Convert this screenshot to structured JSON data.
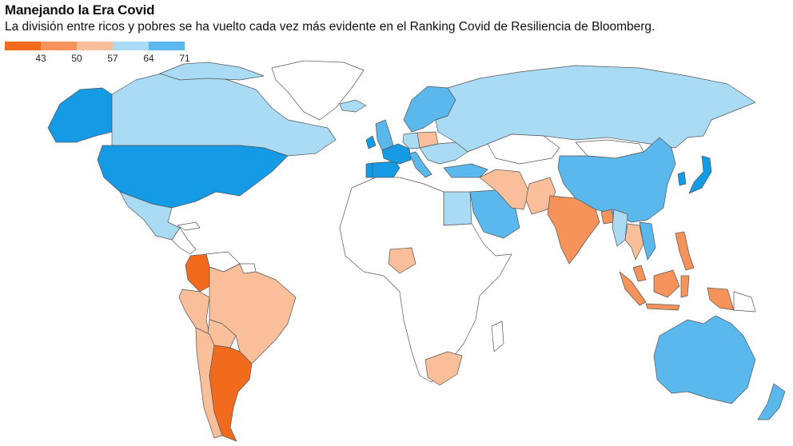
{
  "header": {
    "title": "Manejando la Era Covid",
    "subtitle": "La división entre ricos y pobres se ha vuelto cada vez más evidente en el Ranking Covid de Resiliencia de Bloomberg."
  },
  "legend": {
    "ticks": [
      "43",
      "50",
      "57",
      "64",
      "71"
    ],
    "colors": [
      "#f26b1d",
      "#f5935a",
      "#f8bf9a",
      "#a9dbf5",
      "#5ab8ec",
      "#159be6"
    ]
  },
  "map": {
    "ocean_color": "#ffffff",
    "no_data_color": "#ffffff",
    "regions": [
      {
        "name": "Canada",
        "level": 3
      },
      {
        "name": "Alaska",
        "level": 5
      },
      {
        "name": "United States",
        "level": 5
      },
      {
        "name": "Greenland",
        "level": 6
      },
      {
        "name": "Mexico",
        "level": 3
      },
      {
        "name": "Central America",
        "level": 6
      },
      {
        "name": "Colombia",
        "level": 0
      },
      {
        "name": "Venezuela",
        "level": 6
      },
      {
        "name": "Brazil",
        "level": 2
      },
      {
        "name": "Peru",
        "level": 2
      },
      {
        "name": "Bolivia",
        "level": 2
      },
      {
        "name": "Chile",
        "level": 2
      },
      {
        "name": "Argentina",
        "level": 0
      },
      {
        "name": "Iceland",
        "level": 3
      },
      {
        "name": "United Kingdom",
        "level": 4
      },
      {
        "name": "Ireland",
        "level": 5
      },
      {
        "name": "Scandinavia",
        "level": 4
      },
      {
        "name": "France",
        "level": 5
      },
      {
        "name": "Spain",
        "level": 5
      },
      {
        "name": "Portugal",
        "level": 5
      },
      {
        "name": "Germany",
        "level": 3
      },
      {
        "name": "Poland",
        "level": 2
      },
      {
        "name": "Italy",
        "level": 4
      },
      {
        "name": "Eastern Europe",
        "level": 3
      },
      {
        "name": "Turkey",
        "level": 4
      },
      {
        "name": "Russia",
        "level": 3
      },
      {
        "name": "Kazakhstan",
        "level": 6
      },
      {
        "name": "China",
        "level": 4
      },
      {
        "name": "Mongolia",
        "level": 6
      },
      {
        "name": "Japan",
        "level": 5
      },
      {
        "name": "South Korea",
        "level": 5
      },
      {
        "name": "Egypt",
        "level": 3
      },
      {
        "name": "Saudi Arabia",
        "level": 4
      },
      {
        "name": "Iran",
        "level": 2
      },
      {
        "name": "Pakistan",
        "level": 2
      },
      {
        "name": "India",
        "level": 1
      },
      {
        "name": "Bangladesh",
        "level": 1
      },
      {
        "name": "Myanmar",
        "level": 3
      },
      {
        "name": "Thailand",
        "level": 2
      },
      {
        "name": "Vietnam",
        "level": 4
      },
      {
        "name": "Philippines",
        "level": 1
      },
      {
        "name": "Malaysia",
        "level": 1
      },
      {
        "name": "Indonesia",
        "level": 1
      },
      {
        "name": "Australia",
        "level": 4
      },
      {
        "name": "New Zealand",
        "level": 4
      },
      {
        "name": "Nigeria",
        "level": 2
      },
      {
        "name": "South Africa",
        "level": 2
      },
      {
        "name": "Africa (other)",
        "level": 6
      }
    ]
  }
}
